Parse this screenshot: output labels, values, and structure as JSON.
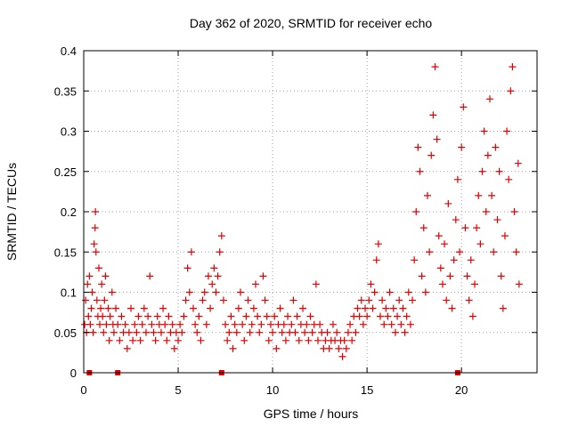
{
  "chart_data": {
    "type": "scatter",
    "title": "Day 362 of 2020, SRMTID for receiver echo",
    "xlabel": "GPS time / hours",
    "ylabel": "SRMTID / TECUs",
    "xlim": [
      0,
      24
    ],
    "ylim": [
      0,
      0.4
    ],
    "grid": true,
    "marker": "+",
    "color": "#e00000",
    "x_ticks": [
      "0",
      "5",
      "10",
      "15",
      "20"
    ],
    "y_ticks": [
      "0",
      "0.05",
      "0.1",
      "0.15",
      "0.2",
      "0.25",
      "0.3",
      "0.35",
      "0.4"
    ],
    "x_tick_values": [
      0,
      5,
      10,
      15,
      20
    ],
    "y_tick_values": [
      0,
      0.05,
      0.1,
      0.15,
      0.2,
      0.25,
      0.3,
      0.35,
      0.4
    ],
    "gap_markers_hours": [
      0.3,
      1.8,
      7.3,
      19.8
    ],
    "series": [
      {
        "name": "SRMTID",
        "points": [
          [
            0.05,
            0.06
          ],
          [
            0.1,
            0.09
          ],
          [
            0.15,
            0.05
          ],
          [
            0.2,
            0.11
          ],
          [
            0.25,
            0.07
          ],
          [
            0.3,
            0.12
          ],
          [
            0.35,
            0.06
          ],
          [
            0.4,
            0.08
          ],
          [
            0.45,
            0.1
          ],
          [
            0.5,
            0.05
          ],
          [
            0.55,
            0.16
          ],
          [
            0.6,
            0.18
          ],
          [
            0.62,
            0.2
          ],
          [
            0.65,
            0.15
          ],
          [
            0.7,
            0.09
          ],
          [
            0.75,
            0.07
          ],
          [
            0.8,
            0.13
          ],
          [
            0.85,
            0.06
          ],
          [
            0.9,
            0.08
          ],
          [
            0.95,
            0.11
          ],
          [
            1.0,
            0.07
          ],
          [
            1.05,
            0.05
          ],
          [
            1.1,
            0.09
          ],
          [
            1.15,
            0.12
          ],
          [
            1.2,
            0.06
          ],
          [
            1.3,
            0.08
          ],
          [
            1.35,
            0.04
          ],
          [
            1.4,
            0.07
          ],
          [
            1.5,
            0.1
          ],
          [
            1.55,
            0.06
          ],
          [
            1.6,
            0.05
          ],
          [
            1.7,
            0.08
          ],
          [
            1.8,
            0.06
          ],
          [
            1.9,
            0.04
          ],
          [
            2.0,
            0.07
          ],
          [
            2.1,
            0.05
          ],
          [
            2.2,
            0.06
          ],
          [
            2.3,
            0.03
          ],
          [
            2.4,
            0.05
          ],
          [
            2.5,
            0.08
          ],
          [
            2.6,
            0.04
          ],
          [
            2.7,
            0.06
          ],
          [
            2.8,
            0.05
          ],
          [
            2.9,
            0.07
          ],
          [
            3.0,
            0.04
          ],
          [
            3.1,
            0.06
          ],
          [
            3.2,
            0.08
          ],
          [
            3.3,
            0.05
          ],
          [
            3.4,
            0.07
          ],
          [
            3.5,
            0.12
          ],
          [
            3.6,
            0.06
          ],
          [
            3.7,
            0.05
          ],
          [
            3.8,
            0.04
          ],
          [
            3.9,
            0.07
          ],
          [
            4.0,
            0.06
          ],
          [
            4.1,
            0.05
          ],
          [
            4.2,
            0.08
          ],
          [
            4.3,
            0.06
          ],
          [
            4.4,
            0.04
          ],
          [
            4.5,
            0.07
          ],
          [
            4.6,
            0.05
          ],
          [
            4.7,
            0.06
          ],
          [
            4.8,
            0.03
          ],
          [
            4.9,
            0.05
          ],
          [
            5.0,
            0.04
          ],
          [
            5.1,
            0.06
          ],
          [
            5.2,
            0.05
          ],
          [
            5.3,
            0.07
          ],
          [
            5.4,
            0.09
          ],
          [
            5.5,
            0.13
          ],
          [
            5.6,
            0.1
          ],
          [
            5.7,
            0.15
          ],
          [
            5.8,
            0.08
          ],
          [
            5.9,
            0.06
          ],
          [
            6.0,
            0.05
          ],
          [
            6.1,
            0.07
          ],
          [
            6.2,
            0.04
          ],
          [
            6.3,
            0.09
          ],
          [
            6.4,
            0.1
          ],
          [
            6.5,
            0.06
          ],
          [
            6.6,
            0.12
          ],
          [
            6.7,
            0.08
          ],
          [
            6.8,
            0.11
          ],
          [
            6.9,
            0.13
          ],
          [
            7.0,
            0.1
          ],
          [
            7.1,
            0.12
          ],
          [
            7.2,
            0.15
          ],
          [
            7.3,
            0.17
          ],
          [
            7.4,
            0.09
          ],
          [
            7.5,
            0.06
          ],
          [
            7.6,
            0.04
          ],
          [
            7.7,
            0.05
          ],
          [
            7.8,
            0.07
          ],
          [
            7.9,
            0.03
          ],
          [
            8.0,
            0.06
          ],
          [
            8.1,
            0.05
          ],
          [
            8.2,
            0.08
          ],
          [
            8.3,
            0.1
          ],
          [
            8.4,
            0.06
          ],
          [
            8.5,
            0.04
          ],
          [
            8.6,
            0.07
          ],
          [
            8.7,
            0.09
          ],
          [
            8.8,
            0.05
          ],
          [
            8.9,
            0.06
          ],
          [
            9.0,
            0.08
          ],
          [
            9.1,
            0.11
          ],
          [
            9.2,
            0.07
          ],
          [
            9.3,
            0.05
          ],
          [
            9.4,
            0.06
          ],
          [
            9.5,
            0.12
          ],
          [
            9.6,
            0.09
          ],
          [
            9.7,
            0.07
          ],
          [
            9.8,
            0.04
          ],
          [
            9.9,
            0.06
          ],
          [
            10.0,
            0.05
          ],
          [
            10.1,
            0.07
          ],
          [
            10.2,
            0.03
          ],
          [
            10.3,
            0.06
          ],
          [
            10.4,
            0.08
          ],
          [
            10.5,
            0.05
          ],
          [
            10.6,
            0.06
          ],
          [
            10.7,
            0.04
          ],
          [
            10.8,
            0.07
          ],
          [
            10.9,
            0.05
          ],
          [
            11.0,
            0.06
          ],
          [
            11.1,
            0.09
          ],
          [
            11.2,
            0.05
          ],
          [
            11.3,
            0.07
          ],
          [
            11.4,
            0.04
          ],
          [
            11.5,
            0.06
          ],
          [
            11.6,
            0.08
          ],
          [
            11.7,
            0.05
          ],
          [
            11.8,
            0.06
          ],
          [
            11.9,
            0.04
          ],
          [
            12.0,
            0.07
          ],
          [
            12.1,
            0.05
          ],
          [
            12.2,
            0.06
          ],
          [
            12.3,
            0.11
          ],
          [
            12.4,
            0.04
          ],
          [
            12.5,
            0.06
          ],
          [
            12.6,
            0.05
          ],
          [
            12.7,
            0.03
          ],
          [
            12.8,
            0.04
          ],
          [
            12.9,
            0.05
          ],
          [
            13.0,
            0.03
          ],
          [
            13.1,
            0.04
          ],
          [
            13.2,
            0.06
          ],
          [
            13.3,
            0.04
          ],
          [
            13.4,
            0.05
          ],
          [
            13.5,
            0.03
          ],
          [
            13.6,
            0.04
          ],
          [
            13.7,
            0.02
          ],
          [
            13.8,
            0.04
          ],
          [
            13.9,
            0.03
          ],
          [
            14.0,
            0.05
          ],
          [
            14.1,
            0.06
          ],
          [
            14.2,
            0.04
          ],
          [
            14.3,
            0.07
          ],
          [
            14.4,
            0.05
          ],
          [
            14.5,
            0.08
          ],
          [
            14.6,
            0.07
          ],
          [
            14.7,
            0.09
          ],
          [
            14.8,
            0.06
          ],
          [
            14.9,
            0.08
          ],
          [
            15.0,
            0.07
          ],
          [
            15.1,
            0.09
          ],
          [
            15.2,
            0.11
          ],
          [
            15.3,
            0.08
          ],
          [
            15.4,
            0.1
          ],
          [
            15.5,
            0.14
          ],
          [
            15.6,
            0.16
          ],
          [
            15.7,
            0.07
          ],
          [
            15.8,
            0.09
          ],
          [
            15.9,
            0.06
          ],
          [
            16.0,
            0.08
          ],
          [
            16.1,
            0.07
          ],
          [
            16.2,
            0.1
          ],
          [
            16.3,
            0.06
          ],
          [
            16.4,
            0.08
          ],
          [
            16.5,
            0.05
          ],
          [
            16.6,
            0.07
          ],
          [
            16.7,
            0.09
          ],
          [
            16.8,
            0.06
          ],
          [
            16.9,
            0.08
          ],
          [
            17.0,
            0.05
          ],
          [
            17.1,
            0.07
          ],
          [
            17.2,
            0.1
          ],
          [
            17.3,
            0.06
          ],
          [
            17.4,
            0.09
          ],
          [
            17.5,
            0.14
          ],
          [
            17.6,
            0.2
          ],
          [
            17.7,
            0.28
          ],
          [
            17.8,
            0.25
          ],
          [
            17.9,
            0.12
          ],
          [
            18.0,
            0.18
          ],
          [
            18.1,
            0.1
          ],
          [
            18.2,
            0.22
          ],
          [
            18.3,
            0.15
          ],
          [
            18.4,
            0.27
          ],
          [
            18.5,
            0.32
          ],
          [
            18.6,
            0.38
          ],
          [
            18.7,
            0.29
          ],
          [
            18.8,
            0.17
          ],
          [
            18.9,
            0.13
          ],
          [
            19.0,
            0.11
          ],
          [
            19.1,
            0.16
          ],
          [
            19.2,
            0.09
          ],
          [
            19.3,
            0.21
          ],
          [
            19.4,
            0.12
          ],
          [
            19.5,
            0.08
          ],
          [
            19.6,
            0.14
          ],
          [
            19.7,
            0.19
          ],
          [
            19.8,
            0.24
          ],
          [
            19.9,
            0.15
          ],
          [
            20.0,
            0.28
          ],
          [
            20.1,
            0.33
          ],
          [
            20.2,
            0.18
          ],
          [
            20.3,
            0.12
          ],
          [
            20.4,
            0.09
          ],
          [
            20.5,
            0.14
          ],
          [
            20.6,
            0.07
          ],
          [
            20.7,
            0.11
          ],
          [
            20.8,
            0.18
          ],
          [
            20.9,
            0.22
          ],
          [
            21.0,
            0.16
          ],
          [
            21.1,
            0.25
          ],
          [
            21.2,
            0.3
          ],
          [
            21.3,
            0.2
          ],
          [
            21.4,
            0.27
          ],
          [
            21.5,
            0.34
          ],
          [
            21.6,
            0.22
          ],
          [
            21.7,
            0.15
          ],
          [
            21.8,
            0.28
          ],
          [
            21.9,
            0.19
          ],
          [
            22.0,
            0.25
          ],
          [
            22.1,
            0.12
          ],
          [
            22.2,
            0.08
          ],
          [
            22.3,
            0.17
          ],
          [
            22.4,
            0.3
          ],
          [
            22.5,
            0.24
          ],
          [
            22.6,
            0.35
          ],
          [
            22.7,
            0.38
          ],
          [
            22.8,
            0.2
          ],
          [
            22.9,
            0.15
          ],
          [
            23.0,
            0.26
          ],
          [
            23.05,
            0.11
          ]
        ]
      }
    ]
  }
}
